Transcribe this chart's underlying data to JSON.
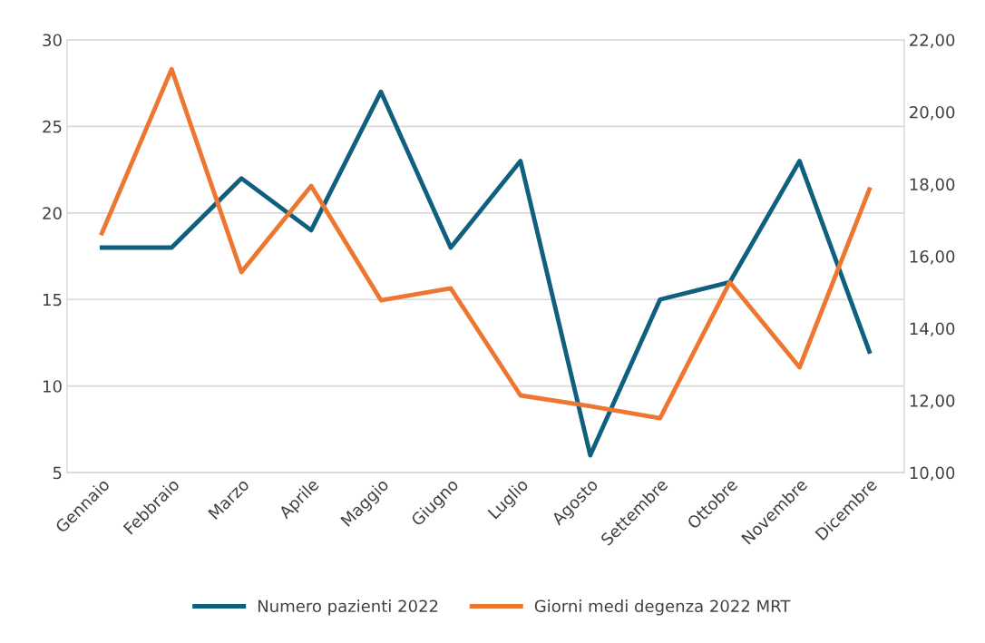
{
  "chart_data": {
    "type": "line",
    "categories": [
      "Gennaio",
      "Febbraio",
      "Marzo",
      "Aprile",
      "Maggio",
      "Giugno",
      "Luglio",
      "Agosto",
      "Settembre",
      "Ottobre",
      "Novembre",
      "Dicembre"
    ],
    "series": [
      {
        "name": "Numero pazienti 2022",
        "color": "#0f5f7f",
        "values": [
          18,
          18,
          22,
          19,
          27,
          18,
          23,
          6,
          15,
          16,
          23,
          12
        ]
      },
      {
        "name": "Giorni medi degenza 2022 MRT",
        "color": "#ed7631",
        "axis": "y2",
        "values": [
          16.64,
          21.19,
          15.56,
          17.95,
          14.78,
          15.11,
          12.14,
          11.84,
          11.51,
          15.28,
          12.92,
          17.85
        ]
      }
    ],
    "ylim": [
      5,
      30
    ],
    "yticks": [
      5,
      10,
      15,
      20,
      25,
      30
    ],
    "y2lim": [
      10,
      22
    ],
    "y2ticks": [
      {
        "value": 10,
        "label": "10,00"
      },
      {
        "value": 12,
        "label": "12,00"
      },
      {
        "value": 14,
        "label": "14,00"
      },
      {
        "value": 16,
        "label": "16,00"
      },
      {
        "value": 18,
        "label": "18,00"
      },
      {
        "value": 20,
        "label": "20,00"
      },
      {
        "value": 22,
        "label": "22,00"
      }
    ],
    "grid": "y",
    "legend": "bottom",
    "marker": "none",
    "line_style": "solid"
  }
}
